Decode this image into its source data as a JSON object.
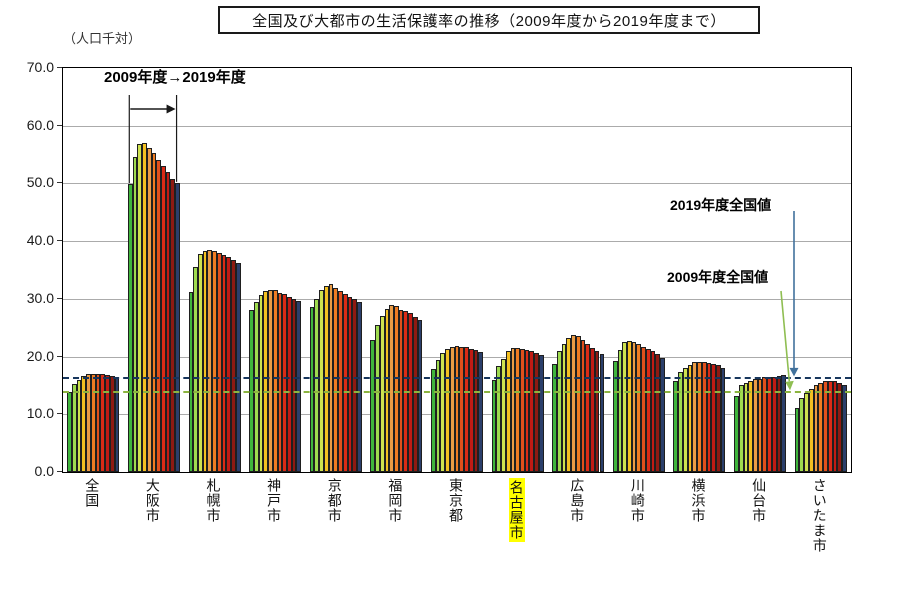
{
  "annotations": {
    "range_label": "2009年度→2019年度",
    "national_2019_label": "2019年度全国値",
    "national_2009_label": "2009年度全国値"
  },
  "highlight_color": "#FFFF00",
  "chart_data": {
    "type": "bar",
    "title": "全国及び大都市の生活保護率の推移（2009年度から2019年度まで）",
    "ylabel": "（人口千対）",
    "ylim": [
      0,
      70
    ],
    "ytick_step": 10,
    "grid": true,
    "legend_position": "none",
    "years": [
      "2009",
      "2010",
      "2011",
      "2012",
      "2013",
      "2014",
      "2015",
      "2016",
      "2017",
      "2018",
      "2019"
    ],
    "year_colors": [
      "#3FB53C",
      "#9FDB4F",
      "#CEE24F",
      "#F3C021",
      "#EB9C45",
      "#EF7C22",
      "#E1501C",
      "#DB2B16",
      "#C11B14",
      "#8E1A12",
      "#2B3F6B"
    ],
    "categories": [
      "全国",
      "大阪市",
      "札幌市",
      "神戸市",
      "京都市",
      "福岡市",
      "東京都",
      "名古屋市",
      "広島市",
      "川崎市",
      "横浜市",
      "仙台市",
      "さいたま市"
    ],
    "highlighted_category": "名古屋市",
    "series": [
      {
        "name": "全国",
        "values": [
          13.8,
          15.2,
          16.0,
          16.6,
          16.9,
          17.0,
          17.0,
          16.9,
          16.8,
          16.6,
          16.3
        ]
      },
      {
        "name": "大阪市",
        "values": [
          49.9,
          54.5,
          56.8,
          57.0,
          56.2,
          55.3,
          54.0,
          53.0,
          51.9,
          50.7,
          50.1
        ]
      },
      {
        "name": "札幌市",
        "values": [
          31.2,
          35.5,
          37.7,
          38.3,
          38.5,
          38.3,
          38.0,
          37.6,
          37.2,
          36.8,
          36.3
        ]
      },
      {
        "name": "神戸市",
        "values": [
          28.0,
          29.4,
          30.6,
          31.3,
          31.6,
          31.5,
          31.0,
          30.8,
          30.4,
          30.0,
          29.6
        ]
      },
      {
        "name": "京都市",
        "values": [
          28.6,
          30.0,
          31.6,
          32.3,
          32.5,
          31.9,
          31.4,
          30.8,
          30.3,
          29.9,
          29.4
        ]
      },
      {
        "name": "福岡市",
        "values": [
          22.8,
          25.5,
          27.0,
          28.3,
          28.9,
          28.8,
          28.1,
          27.9,
          27.5,
          26.8,
          26.4
        ]
      },
      {
        "name": "東京都",
        "values": [
          17.9,
          19.4,
          20.6,
          21.3,
          21.7,
          21.8,
          21.7,
          21.6,
          21.4,
          21.2,
          20.8
        ]
      },
      {
        "name": "名古屋市",
        "values": [
          16.0,
          18.3,
          19.5,
          21.0,
          21.5,
          21.5,
          21.3,
          21.1,
          20.9,
          20.6,
          20.3
        ]
      },
      {
        "name": "広島市",
        "values": [
          18.8,
          20.9,
          22.2,
          23.2,
          23.7,
          23.5,
          22.9,
          22.2,
          21.5,
          20.9,
          20.4
        ]
      },
      {
        "name": "川崎市",
        "values": [
          19.3,
          21.2,
          22.5,
          22.7,
          22.6,
          22.2,
          21.7,
          21.3,
          20.9,
          20.5,
          19.8
        ]
      },
      {
        "name": "横浜市",
        "values": [
          15.7,
          17.4,
          18.1,
          18.6,
          19.0,
          19.1,
          19.0,
          18.9,
          18.8,
          18.6,
          18.1
        ]
      },
      {
        "name": "仙台市",
        "values": [
          13.2,
          15.1,
          15.4,
          15.8,
          16.1,
          16.2,
          16.4,
          16.4,
          16.5,
          16.7,
          16.8
        ]
      },
      {
        "name": "さいたま市",
        "values": [
          11.1,
          12.9,
          13.7,
          14.4,
          15.1,
          15.5,
          15.8,
          15.8,
          15.7,
          15.4,
          15.1
        ]
      }
    ],
    "reference_lines": [
      {
        "name": "2009年度全国値",
        "value": 13.8,
        "color": "#8CB43F",
        "style": "dashed"
      },
      {
        "name": "2019年度全国値",
        "value": 16.3,
        "color": "#17365D",
        "style": "dashed"
      }
    ],
    "arrow_colors": {
      "national_2019": "#41719C",
      "national_2009": "#8FBE52",
      "range_bracket": "#1a1a1a"
    }
  }
}
